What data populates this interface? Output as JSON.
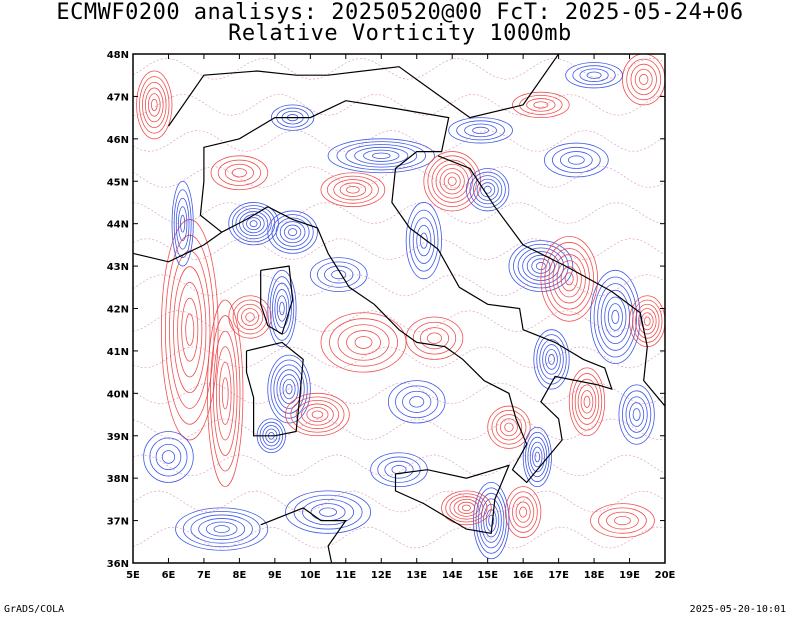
{
  "header": {
    "title_line1": "ECMWF0200 analisys: 20250520@00 FcT: 2025-05-24+06",
    "title_line2": "Relative Vorticity 1000mb"
  },
  "map": {
    "lon_labels": [
      "5E",
      "6E",
      "7E",
      "8E",
      "9E",
      "10E",
      "11E",
      "12E",
      "13E",
      "14E",
      "15E",
      "16E",
      "17E",
      "18E",
      "19E",
      "20E"
    ],
    "lat_labels": [
      "48N",
      "47N",
      "46N",
      "45N",
      "44N",
      "43N",
      "42N",
      "41N",
      "40N",
      "39N",
      "38N",
      "37N",
      "36N"
    ],
    "lon_range": [
      5,
      20
    ],
    "lat_range": [
      36,
      48
    ],
    "positive_color": "#f03c3c",
    "negative_color": "#2846e6",
    "zero_color": "#c86496",
    "coastline_color": "#000000"
  },
  "footer": {
    "left": "GrADS/COLA",
    "right": "2025-05-20-10:01"
  }
}
